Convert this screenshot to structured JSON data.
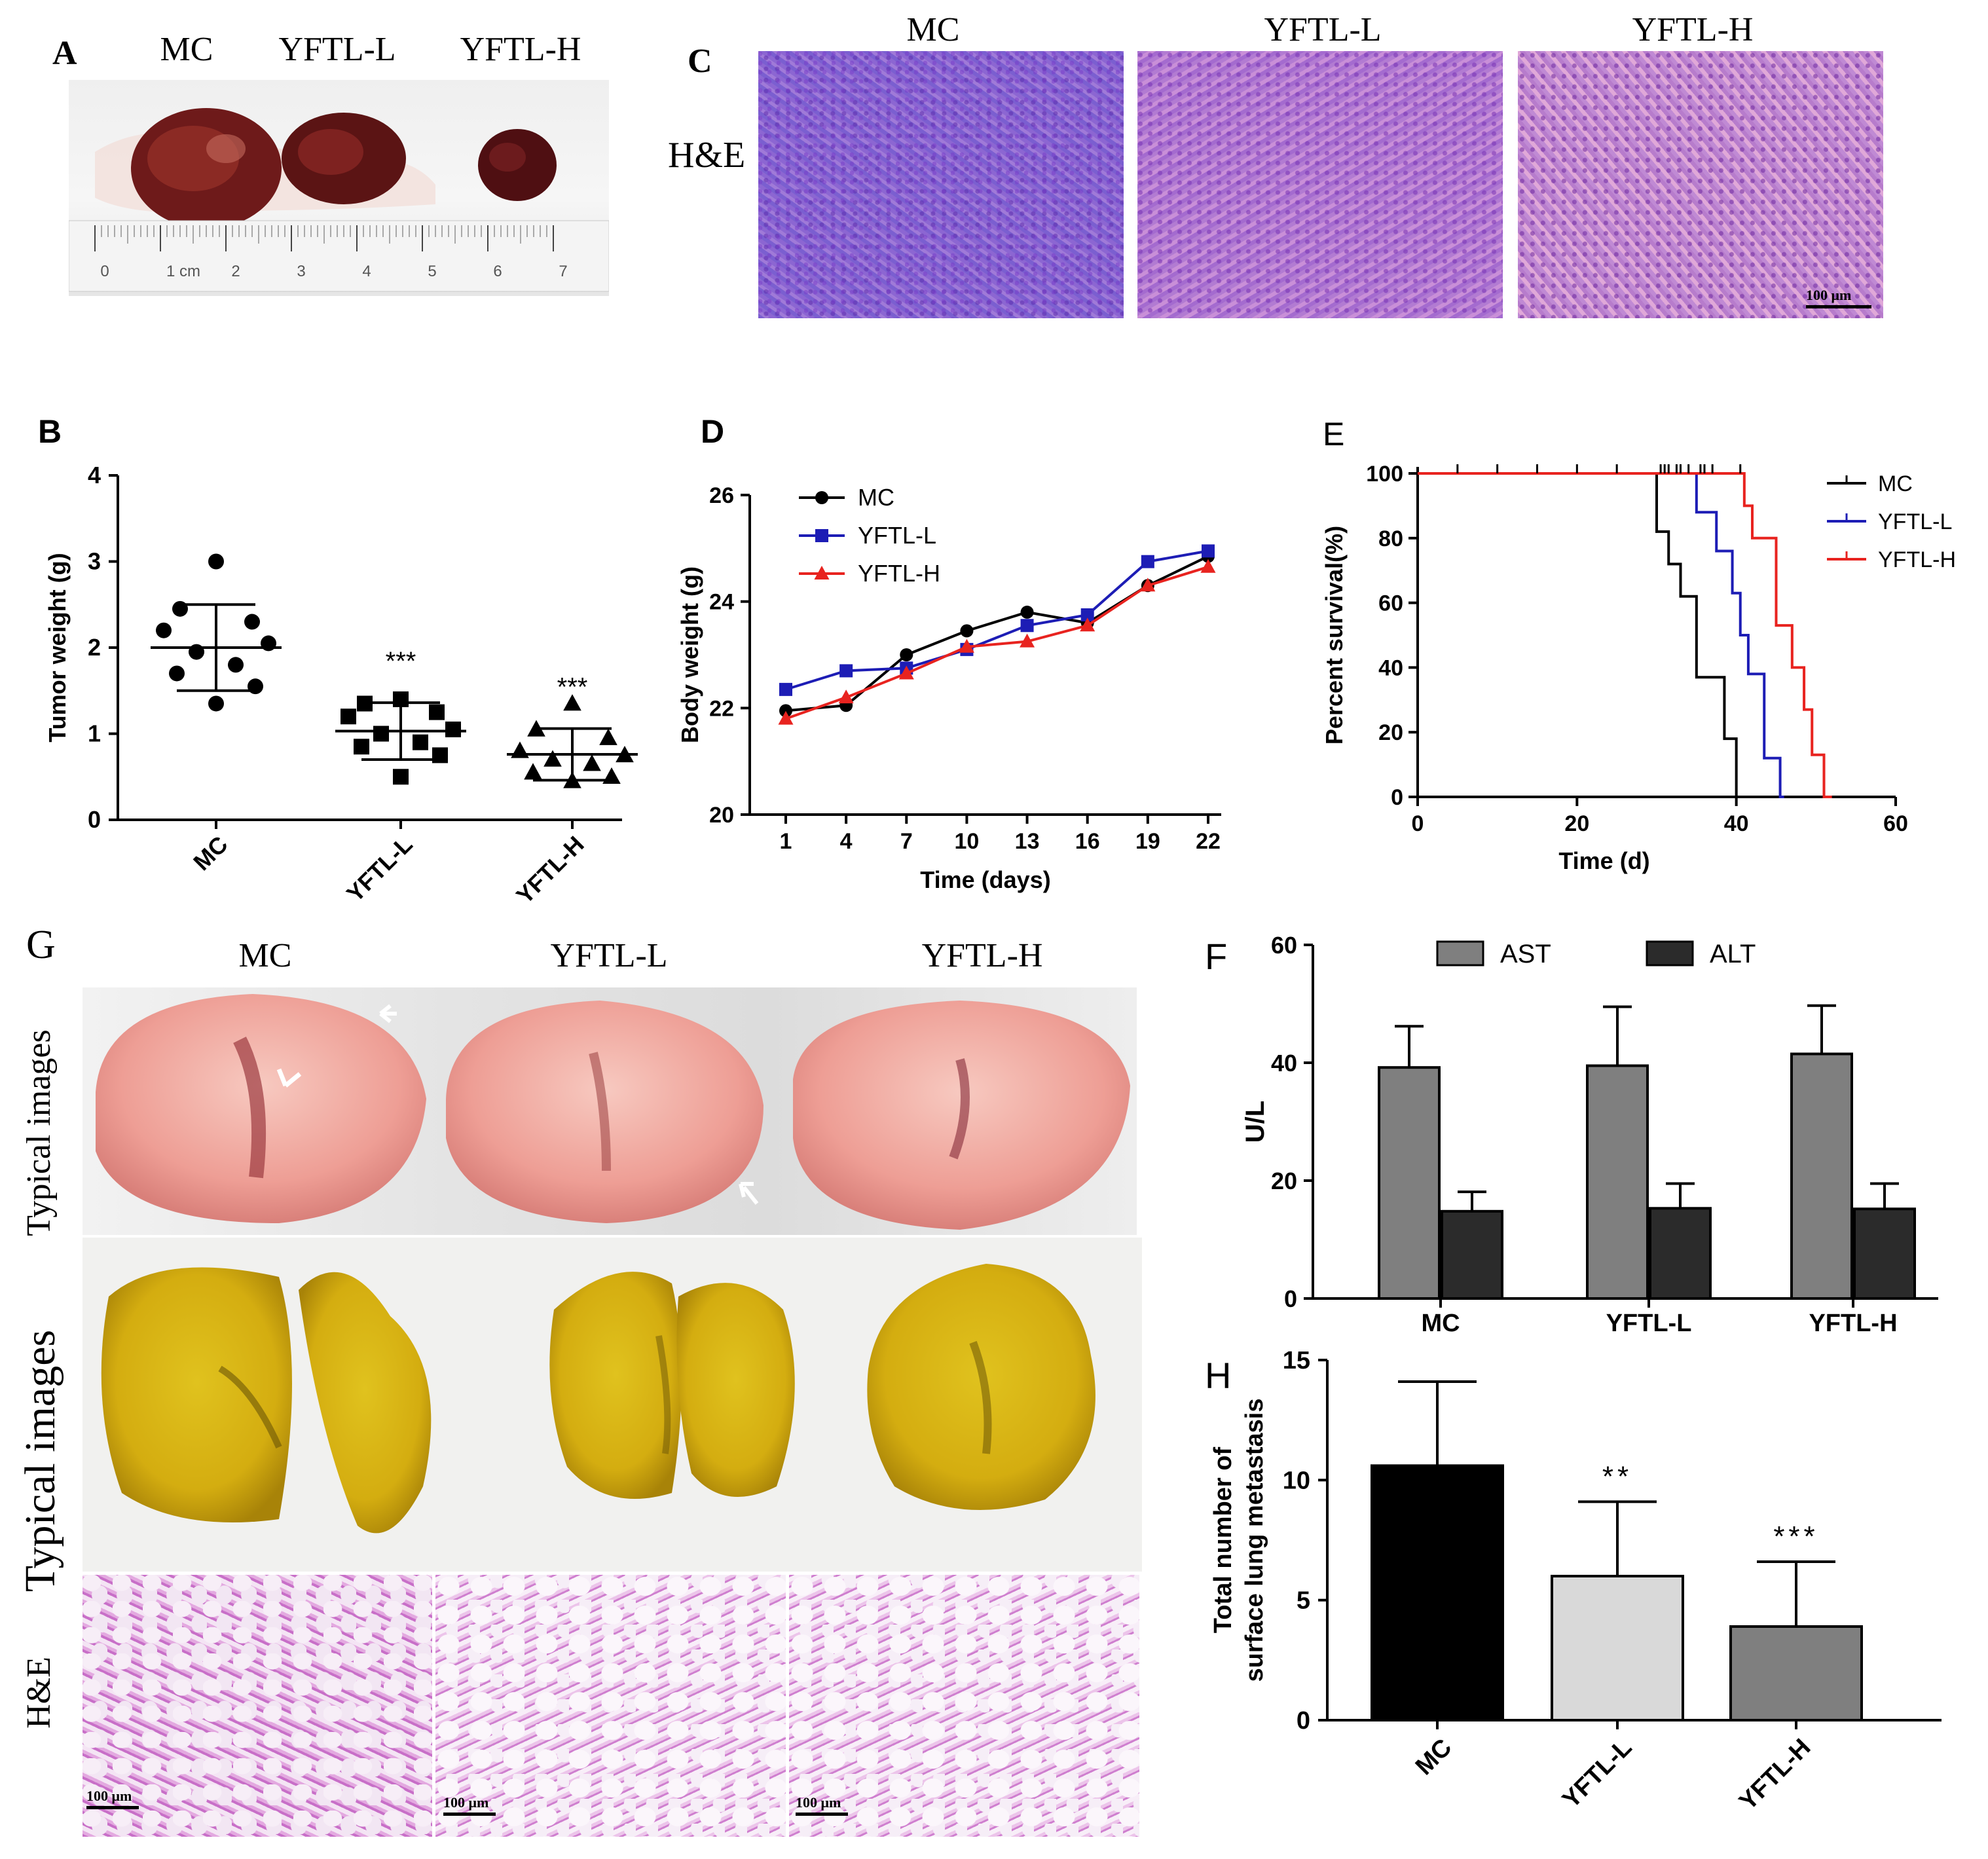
{
  "panel_a": {
    "label": "A",
    "groups": [
      "MC",
      "YFTL-L",
      "YFTL-H"
    ],
    "ruler": {
      "ticks": [
        "0",
        "1 cm",
        "2",
        "3",
        "4",
        "5",
        "6",
        "7"
      ]
    }
  },
  "panel_c": {
    "label": "C",
    "row_label": "H&E",
    "groups": [
      "MC",
      "YFTL-L",
      "YFTL-H"
    ],
    "scale_bar": "100 μm"
  },
  "panel_g": {
    "label": "G",
    "groups": [
      "MC",
      "YFTL-L",
      "YFTL-H"
    ],
    "row1_label": "Typical images",
    "row2_label": "Typical images",
    "row3_label": "H&E",
    "scale_bar": "100 μm"
  },
  "colors": {
    "mc": "#000000",
    "yftl_l": "#1d1db5",
    "yftl_h": "#e8231f",
    "ast": "#7f7f7f",
    "alt": "#2b2b2b",
    "h_mc": "#000000",
    "h_l": "#d9d9d9",
    "h_h": "#7f7f7f"
  },
  "chart_data": [
    {
      "panel": "B",
      "type": "scatter",
      "title": "",
      "ylabel": "Tumor weight (g)",
      "ylim": [
        0,
        4
      ],
      "yticks": [
        "0",
        "1",
        "2",
        "3",
        "4"
      ],
      "categories": [
        "MC",
        "YFTL-L",
        "YFTL-H"
      ],
      "annotations": [
        "",
        "***",
        "***"
      ],
      "series": [
        {
          "name": "MC",
          "marker": "circle",
          "mean": 2.0,
          "sd": 0.5,
          "values": [
            3.0,
            2.45,
            2.3,
            2.2,
            2.05,
            1.95,
            1.8,
            1.7,
            1.55,
            1.35
          ]
        },
        {
          "name": "YFTL-L",
          "marker": "square",
          "mean": 1.03,
          "sd": 0.33,
          "values": [
            1.4,
            1.35,
            1.25,
            1.2,
            1.05,
            1.0,
            0.9,
            0.85,
            0.75,
            0.5
          ]
        },
        {
          "name": "YFTL-H",
          "marker": "triangle",
          "mean": 0.76,
          "sd": 0.3,
          "values": [
            1.35,
            1.05,
            0.95,
            0.8,
            0.75,
            0.7,
            0.65,
            0.55,
            0.5,
            0.45
          ]
        }
      ]
    },
    {
      "panel": "D",
      "type": "line",
      "xlabel": "Time (days)",
      "ylabel": "Body weight (g)",
      "ylim": [
        20,
        26
      ],
      "yticks": [
        "20",
        "22",
        "24",
        "26"
      ],
      "x": [
        1,
        4,
        7,
        10,
        13,
        16,
        19,
        22
      ],
      "xticks": [
        "1",
        "4",
        "7",
        "10",
        "13",
        "16",
        "19",
        "22"
      ],
      "legend": "top-left",
      "series": [
        {
          "name": "MC",
          "marker": "circle",
          "values": [
            21.95,
            22.05,
            23.0,
            23.45,
            23.8,
            23.6,
            24.3,
            24.85
          ]
        },
        {
          "name": "YFTL-L",
          "marker": "square",
          "values": [
            22.35,
            22.7,
            22.75,
            23.1,
            23.55,
            23.75,
            24.75,
            24.95
          ]
        },
        {
          "name": "YFTL-H",
          "marker": "triangle",
          "values": [
            21.8,
            22.2,
            22.65,
            23.15,
            23.25,
            23.55,
            24.3,
            24.65
          ]
        }
      ]
    },
    {
      "panel": "E",
      "type": "line",
      "label": "E",
      "xlabel": "Time (d)",
      "ylabel": "Percent survival(%)",
      "xlim": [
        0,
        60
      ],
      "ylim": [
        0,
        100
      ],
      "xticks": [
        "0",
        "20",
        "40",
        "60"
      ],
      "yticks": [
        "0",
        "20",
        "40",
        "60",
        "80",
        "100"
      ],
      "legend": "top-right",
      "series": [
        {
          "name": "MC",
          "steps": [
            [
              0,
              100
            ],
            [
              30,
              100
            ],
            [
              30,
              82
            ],
            [
              31.5,
              82
            ],
            [
              31.5,
              72
            ],
            [
              33,
              72
            ],
            [
              33,
              62
            ],
            [
              35,
              62
            ],
            [
              35,
              37
            ],
            [
              38.5,
              37
            ],
            [
              38.5,
              18
            ],
            [
              40,
              18
            ],
            [
              40,
              0
            ],
            [
              41,
              0
            ]
          ]
        },
        {
          "name": "YFTL-L",
          "steps": [
            [
              0,
              100
            ],
            [
              35,
              100
            ],
            [
              35,
              88
            ],
            [
              37.5,
              88
            ],
            [
              37.5,
              76
            ],
            [
              39.5,
              76
            ],
            [
              39.5,
              63
            ],
            [
              40.5,
              63
            ],
            [
              40.5,
              50
            ],
            [
              41.5,
              50
            ],
            [
              41.5,
              38
            ],
            [
              43.5,
              38
            ],
            [
              43.5,
              12
            ],
            [
              45.5,
              12
            ],
            [
              45.5,
              0
            ],
            [
              46,
              0
            ]
          ]
        },
        {
          "name": "YFTL-H",
          "steps": [
            [
              0,
              100
            ],
            [
              41,
              100
            ],
            [
              41,
              90
            ],
            [
              42,
              90
            ],
            [
              42,
              80
            ],
            [
              45,
              80
            ],
            [
              45,
              53
            ],
            [
              47,
              53
            ],
            [
              47,
              40
            ],
            [
              48.5,
              40
            ],
            [
              48.5,
              27
            ],
            [
              49.5,
              27
            ],
            [
              49.5,
              13
            ],
            [
              51,
              13
            ],
            [
              51,
              0
            ],
            [
              52,
              0
            ]
          ]
        }
      ],
      "censor_ticks": [
        5,
        10,
        15,
        20,
        25,
        30.5,
        31,
        31.5,
        32.5,
        33,
        34,
        35.5,
        36,
        37,
        40.5
      ]
    },
    {
      "panel": "F",
      "type": "bar",
      "label": "F",
      "ylabel": "U/L",
      "ylim": [
        0,
        60
      ],
      "yticks": [
        "0",
        "20",
        "40",
        "60"
      ],
      "categories": [
        "MC",
        "YFTL-L",
        "YFTL-H"
      ],
      "legend": "top",
      "series": [
        {
          "name": "AST",
          "values": [
            39.2,
            39.5,
            41.5
          ],
          "errors": [
            7.0,
            10.0,
            8.2
          ]
        },
        {
          "name": "ALT",
          "values": [
            14.8,
            15.3,
            15.2
          ],
          "errors": [
            3.3,
            4.2,
            4.3
          ]
        }
      ]
    },
    {
      "panel": "H",
      "type": "bar",
      "label": "H",
      "ylabel": "Total number of surface lung metastasis",
      "ylabel_lines": [
        "Total number of",
        "surface lung metastasis"
      ],
      "ylim": [
        0,
        15
      ],
      "yticks": [
        "0",
        "5",
        "10",
        "15"
      ],
      "categories": [
        "MC",
        "YFTL-L",
        "YFTL-H"
      ],
      "values": [
        10.6,
        6.0,
        3.9
      ],
      "errors": [
        3.5,
        3.1,
        2.7
      ],
      "annotations": [
        "",
        "**",
        "***"
      ]
    }
  ]
}
